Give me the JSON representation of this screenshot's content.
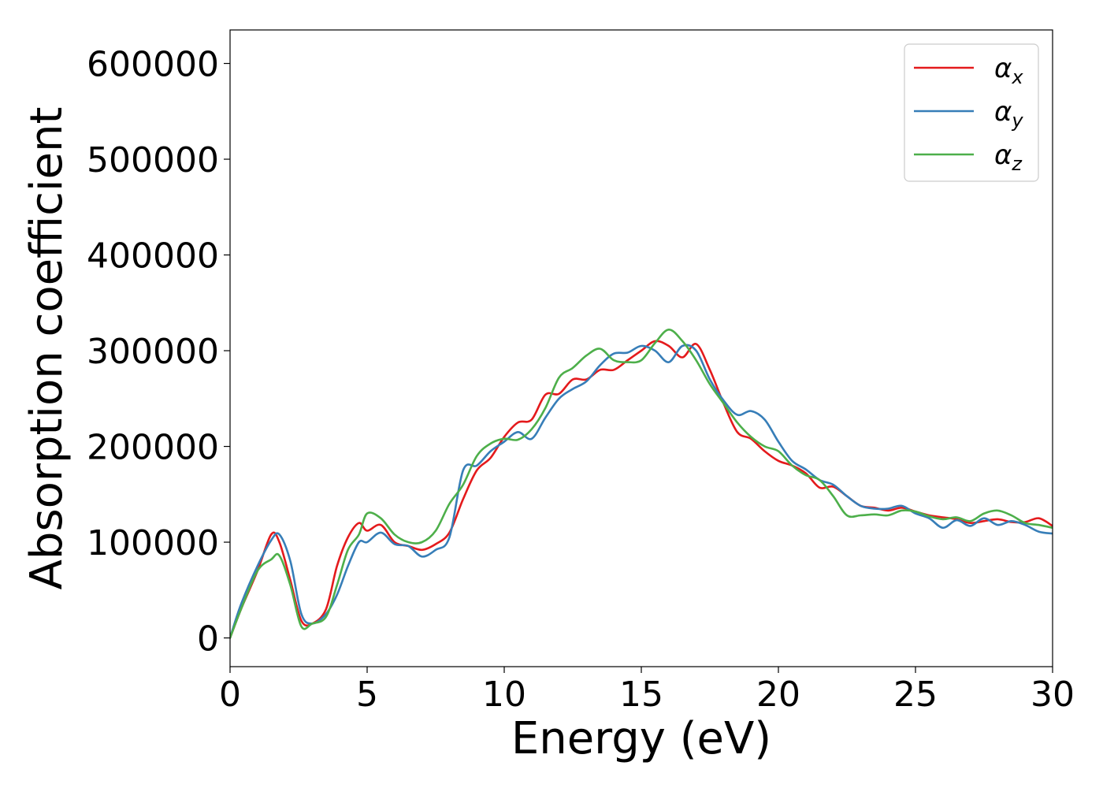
{
  "chart_data": {
    "type": "line",
    "xlabel": "Energy (eV)",
    "ylabel": "Absorption coefficient",
    "xlim": [
      0,
      30
    ],
    "ylim": [
      -30000,
      635000
    ],
    "xticks": [
      0,
      5,
      10,
      15,
      20,
      25,
      30
    ],
    "xtick_labels": [
      "0",
      "5",
      "10",
      "15",
      "20",
      "25",
      "30"
    ],
    "yticks": [
      0,
      100000,
      200000,
      300000,
      400000,
      500000,
      600000
    ],
    "ytick_labels": [
      "0",
      "100000",
      "200000",
      "300000",
      "400000",
      "500000",
      "600000"
    ],
    "grid": false,
    "legend_position": "top-right",
    "series": [
      {
        "name": "α_x",
        "legend_base": "α",
        "legend_sub": "x",
        "color": "#e41a1c",
        "x": [
          0,
          0.4,
          1.0,
          1.5,
          1.8,
          2.2,
          2.6,
          3.0,
          3.5,
          3.9,
          4.3,
          4.7,
          5.0,
          5.5,
          6.0,
          6.5,
          7.0,
          7.5,
          8.0,
          8.5,
          9.0,
          9.5,
          10.0,
          10.5,
          11.0,
          11.5,
          12.0,
          12.5,
          13.0,
          13.5,
          14.0,
          14.5,
          15.0,
          15.5,
          16.0,
          16.5,
          17.0,
          17.5,
          18.0,
          18.5,
          19.0,
          19.5,
          20.0,
          20.5,
          21.0,
          21.5,
          22.0,
          22.5,
          23.0,
          23.5,
          24.0,
          24.5,
          25.0,
          25.5,
          26.0,
          26.5,
          27.0,
          27.5,
          28.0,
          28.5,
          29.0,
          29.5,
          30.0
        ],
        "y": [
          0,
          30000,
          70000,
          108000,
          100000,
          60000,
          18000,
          15000,
          30000,
          75000,
          105000,
          120000,
          112000,
          118000,
          100000,
          96000,
          92000,
          98000,
          110000,
          145000,
          175000,
          188000,
          210000,
          225000,
          228000,
          254000,
          255000,
          270000,
          270000,
          280000,
          280000,
          290000,
          300000,
          310000,
          305000,
          293000,
          307000,
          280000,
          245000,
          215000,
          208000,
          195000,
          185000,
          180000,
          172000,
          157000,
          158000,
          148000,
          138000,
          136000,
          133000,
          136000,
          132000,
          128000,
          126000,
          124000,
          120000,
          122000,
          124000,
          121000,
          121000,
          125000,
          117000
        ]
      },
      {
        "name": "α_y",
        "legend_base": "α",
        "legend_sub": "y",
        "color": "#377eb8",
        "x": [
          0,
          0.4,
          1.0,
          1.5,
          1.8,
          2.2,
          2.6,
          3.0,
          3.5,
          3.9,
          4.3,
          4.7,
          5.0,
          5.5,
          6.0,
          6.5,
          7.0,
          7.5,
          8.0,
          8.5,
          9.0,
          9.5,
          10.0,
          10.5,
          11.0,
          11.5,
          12.0,
          12.5,
          13.0,
          13.5,
          14.0,
          14.5,
          15.0,
          15.5,
          16.0,
          16.5,
          17.0,
          17.5,
          18.0,
          18.5,
          19.0,
          19.5,
          20.0,
          20.5,
          21.0,
          21.5,
          22.0,
          22.5,
          23.0,
          23.5,
          24.0,
          24.5,
          25.0,
          25.5,
          26.0,
          26.5,
          27.0,
          27.5,
          28.0,
          28.5,
          29.0,
          29.5,
          30.0
        ],
        "y": [
          0,
          35000,
          75000,
          102000,
          108000,
          80000,
          25000,
          15000,
          25000,
          45000,
          75000,
          100000,
          100000,
          110000,
          98000,
          96000,
          85000,
          92000,
          105000,
          175000,
          180000,
          195000,
          205000,
          215000,
          208000,
          230000,
          250000,
          260000,
          268000,
          285000,
          297000,
          298000,
          305000,
          300000,
          288000,
          305000,
          300000,
          270000,
          248000,
          233000,
          237000,
          228000,
          205000,
          185000,
          176000,
          165000,
          160000,
          148000,
          138000,
          135000,
          135000,
          138000,
          130000,
          125000,
          115000,
          123000,
          117000,
          125000,
          118000,
          122000,
          118000,
          111000,
          109000
        ]
      },
      {
        "name": "α_z",
        "legend_base": "α",
        "legend_sub": "z",
        "color": "#4daf4a",
        "x": [
          0,
          0.4,
          1.0,
          1.5,
          1.8,
          2.2,
          2.6,
          3.0,
          3.5,
          3.9,
          4.3,
          4.7,
          5.0,
          5.5,
          6.0,
          6.5,
          7.0,
          7.5,
          8.0,
          8.5,
          9.0,
          9.5,
          10.0,
          10.5,
          11.0,
          11.5,
          12.0,
          12.5,
          13.0,
          13.5,
          14.0,
          14.5,
          15.0,
          15.5,
          16.0,
          16.5,
          17.0,
          17.5,
          18.0,
          18.5,
          19.0,
          19.5,
          20.0,
          20.5,
          21.0,
          21.5,
          22.0,
          22.5,
          23.0,
          23.5,
          24.0,
          24.5,
          25.0,
          25.5,
          26.0,
          26.5,
          27.0,
          27.5,
          28.0,
          28.5,
          29.0,
          29.5,
          30.0
        ],
        "y": [
          0,
          30000,
          70000,
          82000,
          86000,
          55000,
          12000,
          15000,
          22000,
          55000,
          92000,
          108000,
          130000,
          125000,
          108000,
          100000,
          100000,
          112000,
          140000,
          160000,
          190000,
          203000,
          208000,
          207000,
          218000,
          240000,
          272000,
          282000,
          295000,
          302000,
          290000,
          288000,
          290000,
          308000,
          322000,
          310000,
          290000,
          265000,
          245000,
          225000,
          210000,
          200000,
          195000,
          180000,
          170000,
          165000,
          148000,
          128000,
          128000,
          129000,
          128000,
          133000,
          132000,
          127000,
          124000,
          126000,
          122000,
          130000,
          133000,
          128000,
          120000,
          118000,
          115000
        ]
      }
    ]
  }
}
